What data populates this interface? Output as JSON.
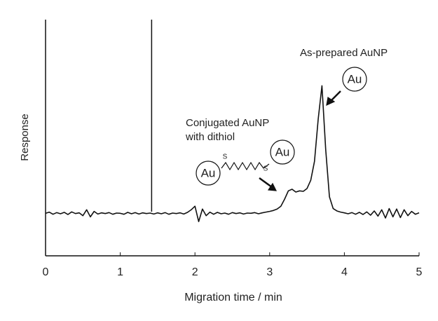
{
  "chart_data": {
    "type": "line",
    "x_label": "Migration time / min",
    "y_label": "Response",
    "x": [
      0,
      0.05,
      0.1,
      0.15,
      0.2,
      0.25,
      0.3,
      0.35,
      0.4,
      0.45,
      0.5,
      0.55,
      0.6,
      0.65,
      0.7,
      0.75,
      0.8,
      0.85,
      0.9,
      0.95,
      1.0,
      1.05,
      1.1,
      1.15,
      1.2,
      1.25,
      1.3,
      1.35,
      1.4,
      1.45,
      1.5,
      1.55,
      1.6,
      1.65,
      1.7,
      1.75,
      1.8,
      1.85,
      1.9,
      1.95,
      2.0,
      2.05,
      2.1,
      2.15,
      2.2,
      2.25,
      2.3,
      2.35,
      2.4,
      2.45,
      2.5,
      2.55,
      2.6,
      2.65,
      2.7,
      2.75,
      2.8,
      2.85,
      2.9,
      2.95,
      3.0,
      3.05,
      3.1,
      3.15,
      3.2,
      3.25,
      3.3,
      3.35,
      3.4,
      3.45,
      3.5,
      3.55,
      3.6,
      3.65,
      3.7,
      3.75,
      3.8,
      3.85,
      3.9,
      3.95,
      4.0,
      4.05,
      4.1,
      4.15,
      4.2,
      4.25,
      4.3,
      4.35,
      4.4,
      4.45,
      4.5,
      4.55,
      4.6,
      4.65,
      4.7,
      4.75,
      4.8,
      4.85,
      4.9,
      4.95,
      5.0
    ],
    "series": [
      {
        "color": "#111111",
        "values": [
          18,
          18.5,
          17.6,
          18.3,
          17.8,
          18.4,
          17.5,
          18.6,
          17.9,
          18.2,
          17,
          19.5,
          16.5,
          18.8,
          17.7,
          18.2,
          17.9,
          18.3,
          17.6,
          18.1,
          18,
          17.6,
          18.4,
          17.8,
          18.3,
          17.7,
          18.2,
          17.9,
          18.1,
          17.7,
          18.2,
          17.8,
          18.3,
          17.6,
          18.1,
          17.9,
          18.2,
          17.7,
          18.4,
          19.5,
          21,
          14.5,
          19.8,
          17,
          18.5,
          17.6,
          18.4,
          17.8,
          18.1,
          17.6,
          18.3,
          17.9,
          18.2,
          17.7,
          18.1,
          18,
          18.3,
          17.8,
          18.2,
          18.5,
          18.8,
          19.2,
          19.8,
          21,
          24,
          27.5,
          28.2,
          27,
          27.5,
          27.3,
          28.5,
          32,
          40,
          58,
          72,
          45,
          25,
          20,
          19,
          18.5,
          18.2,
          17.8,
          18.3,
          17.6,
          18.4,
          17.5,
          18.6,
          17.2,
          19,
          16.8,
          19.5,
          16,
          20,
          16.5,
          19.8,
          16.2,
          19.5,
          17,
          18.8,
          17.6,
          18.2
        ]
      }
    ],
    "xlim": [
      0,
      5
    ],
    "ylim": [
      0,
      100
    ],
    "xticks": [
      0,
      1,
      2,
      3,
      4,
      5
    ],
    "marker_x": 1.42,
    "annotations": [
      "As-prepared AuNP",
      "Conjugated AuNP",
      "with dithiol"
    ],
    "particle_label": "Au",
    "sulfur_label": "S"
  }
}
